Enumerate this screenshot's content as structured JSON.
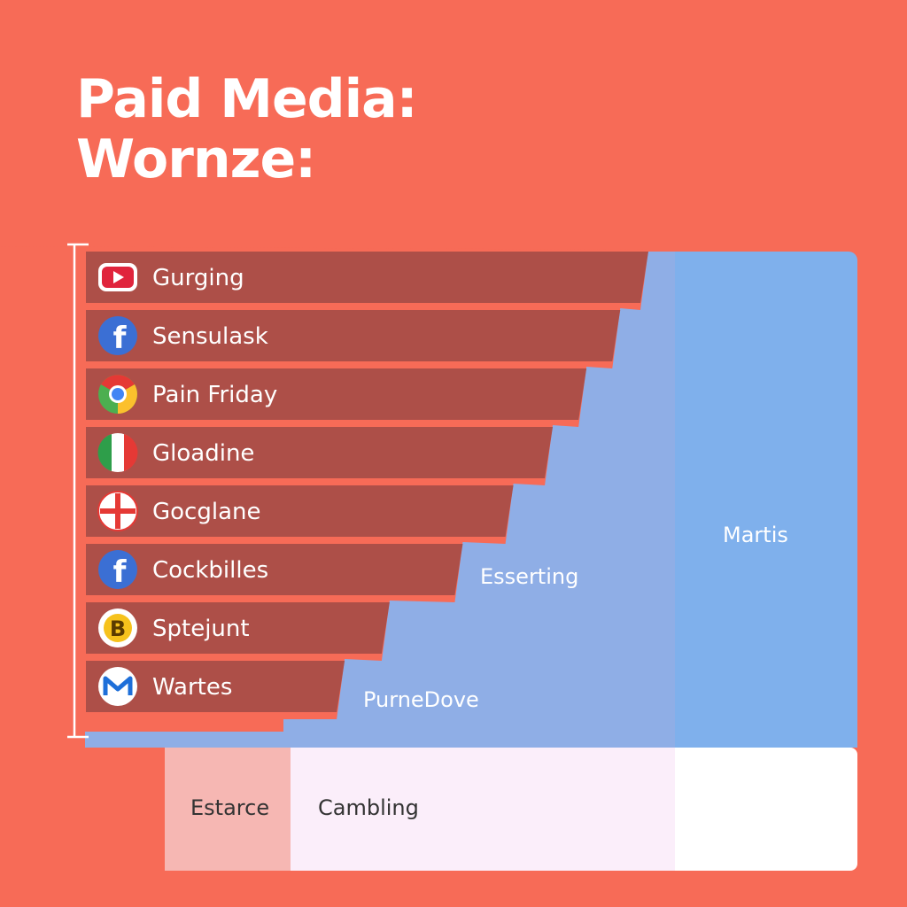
{
  "title": {
    "line1": "Paid Media:",
    "line2": "Wornze:"
  },
  "colors": {
    "background": "#f76b57",
    "bar": "#ad4f48",
    "area_light": "#8faee6",
    "area_dark": "#7fb0ec",
    "legend_left": "#f6b7b3",
    "legend_mid": "#fbeefa",
    "legend_right": "#ffffff"
  },
  "chart_data": {
    "type": "bar",
    "orientation": "horizontal",
    "categories": [
      "Gurging",
      "Sensulask",
      "Pain Friday",
      "Gloadine",
      "Gocglane",
      "Cockbilles",
      "Sptejunt",
      "Wartes"
    ],
    "icons": [
      "youtube-icon",
      "facebook-icon",
      "chrome-icon",
      "italy-flag-icon",
      "cross-badge-icon",
      "facebook-icon",
      "b-coin-icon",
      "mail-icon"
    ],
    "values": [
      100,
      95,
      89,
      83,
      76,
      67,
      54,
      46
    ],
    "region_labels": [
      "Esserting",
      "PurneDove",
      "Martis"
    ],
    "legend": [
      "Estarce",
      "Cambling"
    ]
  }
}
